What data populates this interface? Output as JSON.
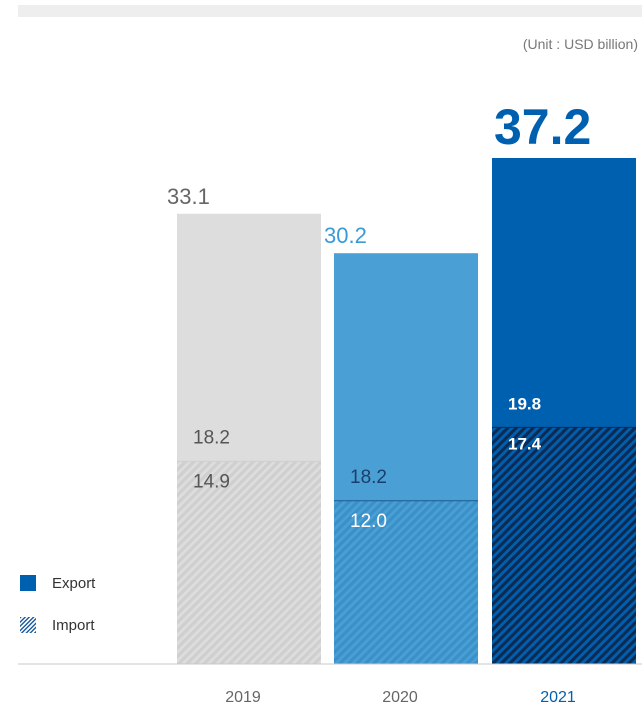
{
  "unit_label": "(Unit : USD billion)",
  "legend": [
    {
      "label": "Export",
      "icon": "solid-swatch",
      "color": "#0060b0"
    },
    {
      "label": "Import",
      "icon": "hatched-swatch",
      "color": "#1f5fa0"
    }
  ],
  "chart_data": {
    "type": "bar",
    "stacked": true,
    "title": "",
    "xlabel": "",
    "ylabel": "",
    "categories": [
      "2019",
      "2020",
      "2021"
    ],
    "totals": [
      "33.1",
      "30.2",
      "37.2"
    ],
    "series": [
      {
        "name": "Import",
        "values": [
          14.9,
          12.0,
          17.4
        ],
        "pattern": "hatched"
      },
      {
        "name": "Export",
        "values": [
          18.2,
          18.2,
          19.8
        ],
        "pattern": "solid"
      }
    ],
    "value_labels": {
      "Import": [
        "14.9",
        "12.0",
        "17.4"
      ],
      "Export": [
        "18.2",
        "18.2",
        "19.8"
      ]
    },
    "colors": {
      "2019": {
        "solid": "#dcdddc",
        "stripe": "#cfcfcf",
        "label": "#555555",
        "total": "#666666"
      },
      "2020": {
        "solid": "#4aa0d4",
        "stripe": "#3a90c8",
        "label": "#1a3f6b",
        "import_label": "#ffffff",
        "total": "#3a9ad6"
      },
      "2021": {
        "solid": "#0060b0",
        "stripe": "#0a2b54",
        "label": "#ffffff",
        "total": "#0060b0"
      }
    },
    "highlight_category": "2021",
    "ylim": [
      0,
      37.2
    ],
    "grid": false,
    "legend_position": "bottom-left"
  }
}
